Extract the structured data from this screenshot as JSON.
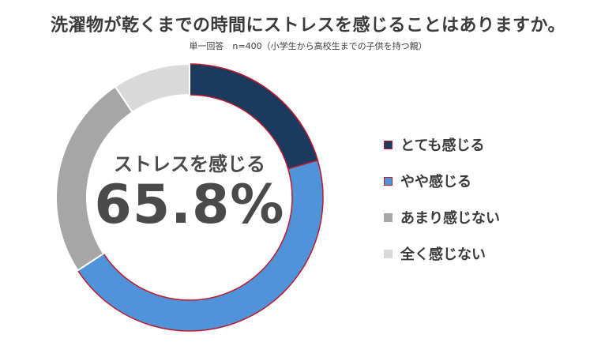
{
  "title": "洗濯物が乾くまでの時間にストレスを感じることはありますか。",
  "subtitle": "単一回答　n=400（小学生から高校生までの子供を持つ親）",
  "center": {
    "label": "ストレスを感じる",
    "value": "65.8%"
  },
  "chart_data": {
    "type": "pie",
    "donut": true,
    "categories": [
      "とても感じる",
      "やや感じる",
      "あまり感じない",
      "全く感じない"
    ],
    "values": [
      20.5,
      45.3,
      24.8,
      9.4
    ],
    "colors": [
      "#1b3a5e",
      "#4f94d8",
      "#a6a6a6",
      "#d9d9d9"
    ],
    "highlight_outline": "#c0192b",
    "legend_position": "right"
  }
}
